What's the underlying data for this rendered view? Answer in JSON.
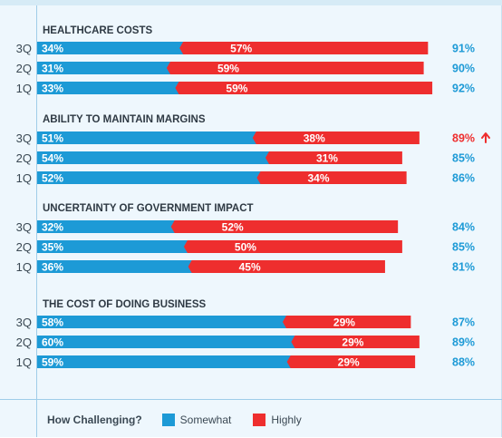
{
  "chart_data": {
    "type": "bar",
    "orientation": "horizontal",
    "stacked": true,
    "colors": {
      "somewhat": "#1d9ad6",
      "highly": "#ee2e2e",
      "total": "#1d9ad6",
      "total_alert": "#ee2e2e",
      "heading": "#2f3a44",
      "row_label": "#3b4954"
    },
    "groups": [
      {
        "title": "HEALTHCARE COSTS",
        "rows": [
          {
            "label": "3Q",
            "somewhat": 34,
            "highly": 57,
            "total": "91%"
          },
          {
            "label": "2Q",
            "somewhat": 31,
            "highly": 59,
            "total": "90%"
          },
          {
            "label": "1Q",
            "somewhat": 33,
            "highly": 59,
            "total": "92%"
          }
        ]
      },
      {
        "title": "ABILITY TO MAINTAIN MARGINS",
        "rows": [
          {
            "label": "3Q",
            "somewhat": 51,
            "highly": 38,
            "total": "89%",
            "alert": true,
            "arrow": "up-arrow-icon"
          },
          {
            "label": "2Q",
            "somewhat": 54,
            "highly": 31,
            "total": "85%"
          },
          {
            "label": "1Q",
            "somewhat": 52,
            "highly": 34,
            "total": "86%"
          }
        ]
      },
      {
        "title": "UNCERTAINTY OF GOVERNMENT IMPACT",
        "rows": [
          {
            "label": "3Q",
            "somewhat": 32,
            "highly": 52,
            "total": "84%"
          },
          {
            "label": "2Q",
            "somewhat": 35,
            "highly": 50,
            "total": "85%"
          },
          {
            "label": "1Q",
            "somewhat": 36,
            "highly": 45,
            "total": "81%"
          }
        ]
      },
      {
        "title": "THE COST OF DOING BUSINESS",
        "rows": [
          {
            "label": "3Q",
            "somewhat": 58,
            "highly": 29,
            "total": "87%"
          },
          {
            "label": "2Q",
            "somewhat": 60,
            "highly": 29,
            "total": "89%"
          },
          {
            "label": "1Q",
            "somewhat": 59,
            "highly": 29,
            "total": "88%"
          }
        ]
      }
    ],
    "legend": {
      "title": "How Challenging?",
      "items": [
        "Somewhat",
        "Highly"
      ],
      "placement": "bottom-left"
    }
  }
}
